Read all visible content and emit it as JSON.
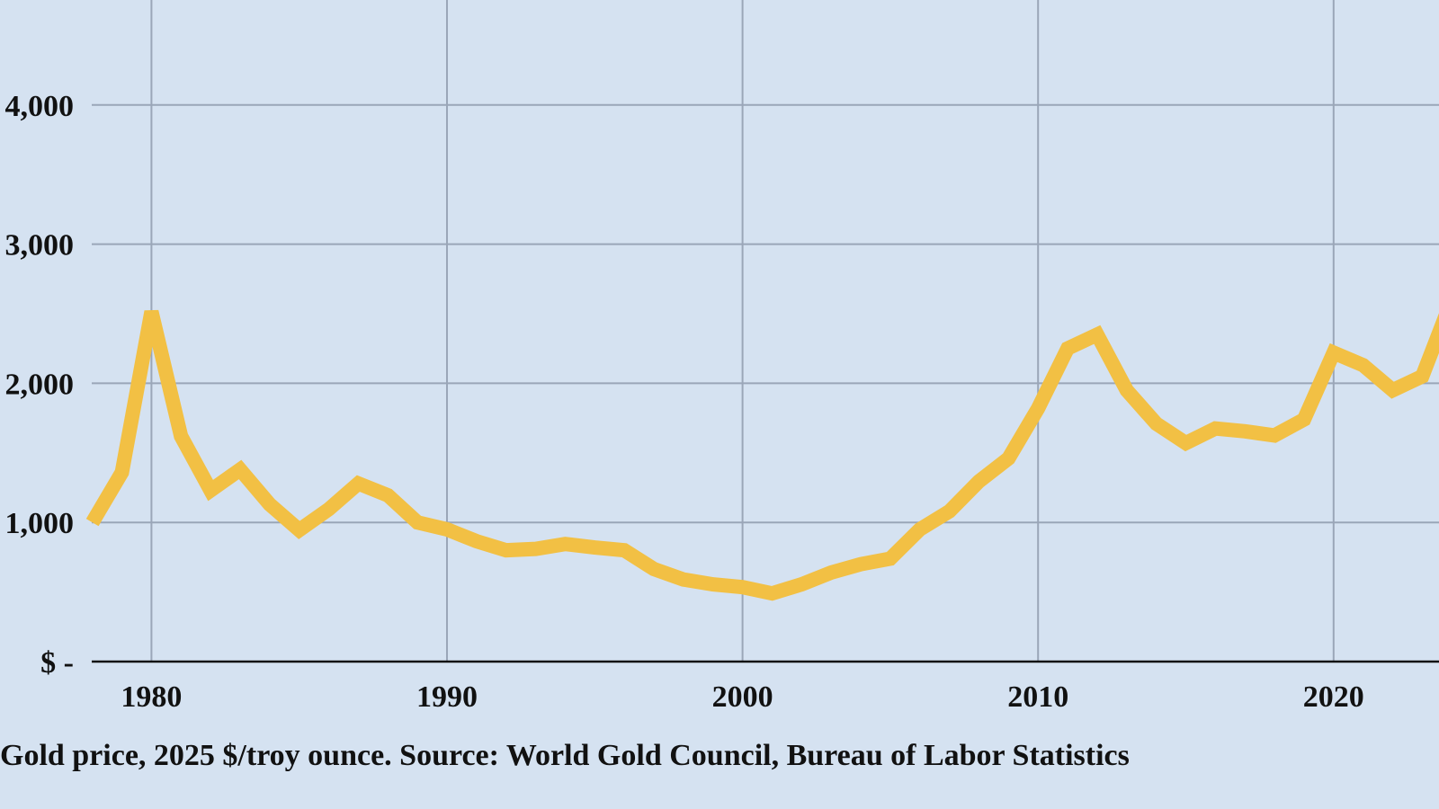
{
  "chart_data": {
    "type": "line",
    "title": "",
    "caption": "Gold price, 2025 $/troy ounce. Source: World Gold Council, Bureau of Labor Statistics",
    "xlabel": "",
    "ylabel": "",
    "xlim": [
      1978,
      2024
    ],
    "ylim": [
      0,
      4700
    ],
    "grid": true,
    "color": "#f2c044",
    "x_ticks": [
      1980,
      1990,
      2000,
      2010,
      2020
    ],
    "x_tick_labels": [
      "1980",
      "1990",
      "2000",
      "2010",
      "2020"
    ],
    "y_ticks": [
      0,
      1000,
      2000,
      3000,
      4000
    ],
    "y_tick_labels": [
      "$ -",
      "1,000",
      "2,000",
      "3,000",
      "4,000"
    ],
    "series": [
      {
        "name": "Gold price",
        "x": [
          1978,
          1979,
          1980,
          1981,
          1982,
          1983,
          1984,
          1985,
          1986,
          1987,
          1988,
          1989,
          1990,
          1991,
          1992,
          1993,
          1994,
          1995,
          1996,
          1997,
          1998,
          1999,
          2000,
          2001,
          2002,
          2003,
          2004,
          2005,
          2006,
          2007,
          2008,
          2009,
          2010,
          2011,
          2012,
          2013,
          2014,
          2015,
          2016,
          2017,
          2018,
          2019,
          2020,
          2021,
          2022,
          2023,
          2024
        ],
        "values": [
          1000,
          1360,
          2515,
          1620,
          1230,
          1380,
          1130,
          945,
          1095,
          1280,
          1195,
          1000,
          950,
          865,
          800,
          810,
          845,
          820,
          800,
          665,
          590,
          555,
          535,
          490,
          555,
          640,
          700,
          740,
          950,
          1080,
          1295,
          1460,
          1820,
          2250,
          2350,
          1950,
          1710,
          1570,
          1675,
          1655,
          1625,
          1740,
          2220,
          2130,
          1950,
          2050,
          2600
        ]
      }
    ]
  }
}
